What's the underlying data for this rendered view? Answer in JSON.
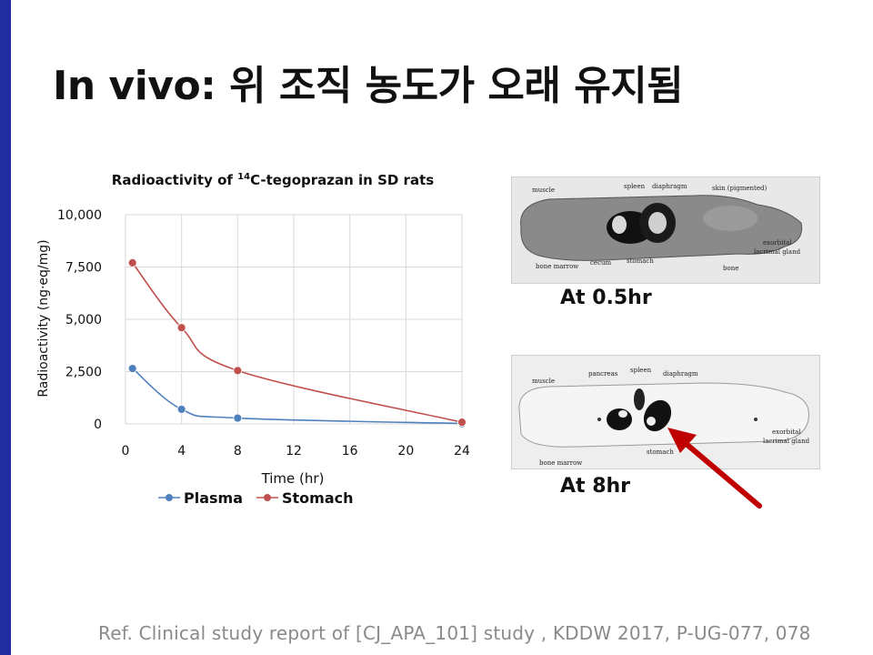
{
  "slide": {
    "title": "In vivo: 위 조직 농도가 오래 유지됨",
    "reference": "Ref. Clinical study report of [CJ_APA_101] study , KDDW 2017, P-UG-077, 078",
    "accent_color": "#1f2d9e"
  },
  "chart_data": {
    "type": "line",
    "title_prefix": "Radioactivity",
    "title_mid": " of ",
    "title_sup": "14",
    "title_suffix": "C-tegoprazan in SD rats",
    "xlabel": "Time (hr)",
    "ylabel": "Radioactivity (ng·eq/mg)",
    "xlim": [
      0,
      24
    ],
    "ylim": [
      0,
      10000
    ],
    "x_ticks": [
      0,
      4,
      8,
      12,
      16,
      20,
      24
    ],
    "x_tick_labels": [
      "0",
      "4",
      "8",
      "12",
      "16",
      "20",
      "24"
    ],
    "y_ticks": [
      0,
      2500,
      5000,
      7500,
      10000
    ],
    "y_tick_labels": [
      "0",
      "2,500",
      "5,000",
      "7,500",
      "10,000"
    ],
    "grid": true,
    "legend_position": "bottom",
    "series": [
      {
        "name": "Plasma",
        "color": "#4f81bd",
        "x": [
          0.5,
          4,
          8,
          24
        ],
        "y": [
          2650,
          700,
          280,
          20
        ]
      },
      {
        "name": "Stomach",
        "color": "#c0504d",
        "x": [
          0.5,
          4,
          8,
          24
        ],
        "y": [
          7700,
          4600,
          2550,
          80
        ]
      }
    ]
  },
  "images": [
    {
      "caption": "At 0.5hr",
      "labels": [
        "muscle",
        "spleen",
        "diaphragm",
        "skin (pigmented)",
        "exorbital",
        "lacrimal gland",
        "bone marrow",
        "cecum",
        "stomach",
        "bone"
      ]
    },
    {
      "caption": "At 8hr",
      "labels": [
        "muscle",
        "pancreas",
        "spleen",
        "diaphragm",
        "exorbital",
        "lacrimal gland",
        "bone marrow",
        "stomach"
      ]
    }
  ],
  "annotation": {
    "arrow_color": "#c00000",
    "arrow_icon": "arrow-pointer-icon"
  }
}
